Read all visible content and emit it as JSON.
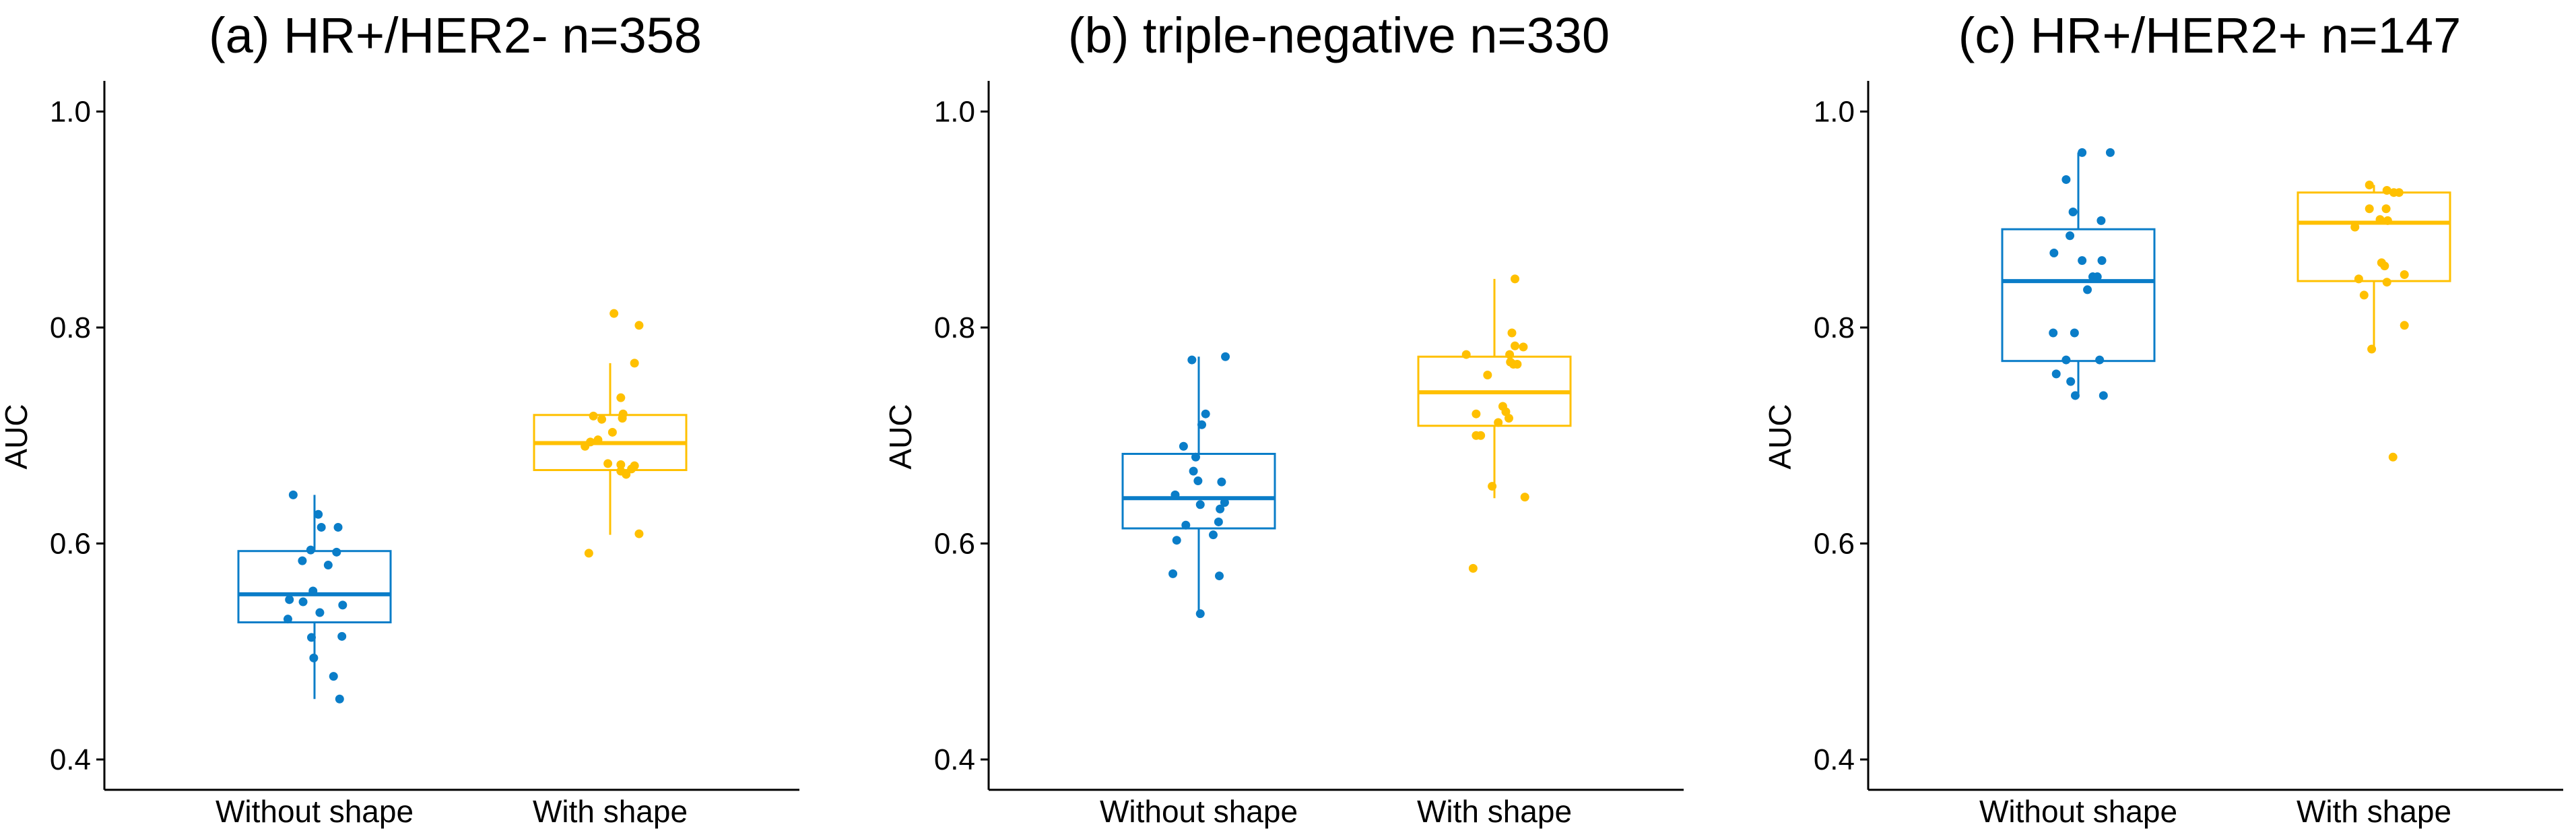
{
  "chart_data": [
    {
      "type": "box",
      "title": "(a) HR+/HER2- n=358",
      "xlabel": "",
      "ylabel": "AUC",
      "ylim": [
        0.4,
        1.0
      ],
      "yticks": [
        0.4,
        0.6,
        0.8,
        1.0
      ],
      "ytick_labels": [
        "0.4",
        "0.6",
        "0.8",
        "1.0"
      ],
      "grid": false,
      "categories": [
        "Without shape",
        "With shape"
      ],
      "series": [
        {
          "name": "Without shape",
          "color": "#0A7DC8",
          "box": {
            "whisker_low": 0.456,
            "q1": 0.527,
            "median": 0.553,
            "q3": 0.593,
            "whisker_high": 0.645
          },
          "points": [
            {
              "jitter": -0.28,
              "value": 0.645
            },
            {
              "jitter": 0.05,
              "value": 0.627
            },
            {
              "jitter": 0.09,
              "value": 0.615
            },
            {
              "jitter": 0.31,
              "value": 0.615
            },
            {
              "jitter": -0.05,
              "value": 0.594
            },
            {
              "jitter": 0.29,
              "value": 0.592
            },
            {
              "jitter": -0.16,
              "value": 0.584
            },
            {
              "jitter": 0.18,
              "value": 0.58
            },
            {
              "jitter": -0.02,
              "value": 0.556
            },
            {
              "jitter": -0.33,
              "value": 0.548
            },
            {
              "jitter": 0.37,
              "value": 0.543
            },
            {
              "jitter": -0.15,
              "value": 0.546
            },
            {
              "jitter": 0.07,
              "value": 0.536
            },
            {
              "jitter": -0.35,
              "value": 0.53
            },
            {
              "jitter": -0.04,
              "value": 0.513
            },
            {
              "jitter": 0.36,
              "value": 0.514
            },
            {
              "jitter": -0.01,
              "value": 0.494
            },
            {
              "jitter": 0.25,
              "value": 0.477
            },
            {
              "jitter": 0.33,
              "value": 0.456
            }
          ]
        },
        {
          "name": "With shape",
          "color": "#FFC000",
          "box": {
            "whisker_low": 0.608,
            "q1": 0.668,
            "median": 0.693,
            "q3": 0.719,
            "whisker_high": 0.767
          },
          "points": [
            {
              "jitter": 0.05,
              "value": 0.813
            },
            {
              "jitter": 0.38,
              "value": 0.802
            },
            {
              "jitter": 0.32,
              "value": 0.767
            },
            {
              "jitter": 0.14,
              "value": 0.735
            },
            {
              "jitter": 0.17,
              "value": 0.72
            },
            {
              "jitter": -0.22,
              "value": 0.718
            },
            {
              "jitter": 0.16,
              "value": 0.716
            },
            {
              "jitter": -0.11,
              "value": 0.715
            },
            {
              "jitter": 0.03,
              "value": 0.703
            },
            {
              "jitter": -0.26,
              "value": 0.694
            },
            {
              "jitter": -0.16,
              "value": 0.696
            },
            {
              "jitter": -0.33,
              "value": 0.69
            },
            {
              "jitter": 0.14,
              "value": 0.673
            },
            {
              "jitter": -0.03,
              "value": 0.674
            },
            {
              "jitter": 0.32,
              "value": 0.672
            },
            {
              "jitter": 0.14,
              "value": 0.667
            },
            {
              "jitter": 0.21,
              "value": 0.664
            },
            {
              "jitter": 0.28,
              "value": 0.669
            },
            {
              "jitter": 0.38,
              "value": 0.609
            },
            {
              "jitter": -0.28,
              "value": 0.591
            }
          ]
        }
      ]
    },
    {
      "type": "box",
      "title": "(b) triple-negative n=330",
      "xlabel": "",
      "ylabel": "AUC",
      "ylim": [
        0.4,
        1.0
      ],
      "yticks": [
        0.4,
        0.6,
        0.8,
        1.0
      ],
      "ytick_labels": [
        "0.4",
        "0.6",
        "0.8",
        "1.0"
      ],
      "grid": false,
      "categories": [
        "Without shape",
        "With shape"
      ],
      "series": [
        {
          "name": "Without shape",
          "color": "#0A7DC8",
          "box": {
            "whisker_low": 0.535,
            "q1": 0.614,
            "median": 0.642,
            "q3": 0.683,
            "whisker_high": 0.773
          },
          "points": [
            {
              "jitter": 0.35,
              "value": 0.773
            },
            {
              "jitter": -0.09,
              "value": 0.77
            },
            {
              "jitter": 0.09,
              "value": 0.72
            },
            {
              "jitter": 0.04,
              "value": 0.71
            },
            {
              "jitter": -0.2,
              "value": 0.69
            },
            {
              "jitter": -0.04,
              "value": 0.68
            },
            {
              "jitter": -0.07,
              "value": 0.667
            },
            {
              "jitter": -0.01,
              "value": 0.658
            },
            {
              "jitter": 0.3,
              "value": 0.657
            },
            {
              "jitter": -0.31,
              "value": 0.645
            },
            {
              "jitter": 0.34,
              "value": 0.638
            },
            {
              "jitter": 0.28,
              "value": 0.632
            },
            {
              "jitter": 0.02,
              "value": 0.636
            },
            {
              "jitter": 0.26,
              "value": 0.62
            },
            {
              "jitter": -0.17,
              "value": 0.617
            },
            {
              "jitter": 0.19,
              "value": 0.608
            },
            {
              "jitter": -0.29,
              "value": 0.603
            },
            {
              "jitter": -0.34,
              "value": 0.572
            },
            {
              "jitter": 0.27,
              "value": 0.57
            },
            {
              "jitter": 0.02,
              "value": 0.535
            }
          ]
        },
        {
          "name": "With shape",
          "color": "#FFC000",
          "box": {
            "whisker_low": 0.642,
            "q1": 0.709,
            "median": 0.74,
            "q3": 0.773,
            "whisker_high": 0.845
          },
          "points": [
            {
              "jitter": 0.27,
              "value": 0.845
            },
            {
              "jitter": 0.23,
              "value": 0.795
            },
            {
              "jitter": 0.27,
              "value": 0.783
            },
            {
              "jitter": 0.38,
              "value": 0.782
            },
            {
              "jitter": -0.37,
              "value": 0.775
            },
            {
              "jitter": 0.2,
              "value": 0.775
            },
            {
              "jitter": 0.21,
              "value": 0.768
            },
            {
              "jitter": 0.25,
              "value": 0.766
            },
            {
              "jitter": 0.3,
              "value": 0.766
            },
            {
              "jitter": -0.09,
              "value": 0.756
            },
            {
              "jitter": 0.11,
              "value": 0.727
            },
            {
              "jitter": 0.15,
              "value": 0.722
            },
            {
              "jitter": -0.24,
              "value": 0.72
            },
            {
              "jitter": 0.19,
              "value": 0.716
            },
            {
              "jitter": 0.05,
              "value": 0.712
            },
            {
              "jitter": -0.18,
              "value": 0.7
            },
            {
              "jitter": -0.24,
              "value": 0.7
            },
            {
              "jitter": -0.03,
              "value": 0.653
            },
            {
              "jitter": 0.4,
              "value": 0.643
            },
            {
              "jitter": -0.28,
              "value": 0.577
            }
          ]
        }
      ]
    },
    {
      "type": "box",
      "title": "(c) HR+/HER2+ n=147",
      "xlabel": "",
      "ylabel": "AUC",
      "ylim": [
        0.4,
        1.0
      ],
      "yticks": [
        0.4,
        0.6,
        0.8,
        1.0
      ],
      "ytick_labels": [
        "0.4",
        "0.6",
        "0.8",
        "1.0"
      ],
      "grid": false,
      "categories": [
        "Without shape",
        "With shape"
      ],
      "series": [
        {
          "name": "Without shape",
          "color": "#0A7DC8",
          "box": {
            "whisker_low": 0.737,
            "q1": 0.769,
            "median": 0.843,
            "q3": 0.891,
            "whisker_high": 0.962
          },
          "points": [
            {
              "jitter": 0.05,
              "value": 0.962
            },
            {
              "jitter": 0.42,
              "value": 0.962
            },
            {
              "jitter": -0.16,
              "value": 0.937
            },
            {
              "jitter": -0.07,
              "value": 0.907
            },
            {
              "jitter": 0.3,
              "value": 0.899
            },
            {
              "jitter": -0.11,
              "value": 0.885
            },
            {
              "jitter": -0.32,
              "value": 0.869
            },
            {
              "jitter": 0.05,
              "value": 0.862
            },
            {
              "jitter": 0.31,
              "value": 0.862
            },
            {
              "jitter": 0.19,
              "value": 0.847
            },
            {
              "jitter": 0.25,
              "value": 0.847
            },
            {
              "jitter": 0.12,
              "value": 0.835
            },
            {
              "jitter": -0.33,
              "value": 0.795
            },
            {
              "jitter": -0.05,
              "value": 0.795
            },
            {
              "jitter": -0.16,
              "value": 0.77
            },
            {
              "jitter": 0.28,
              "value": 0.77
            },
            {
              "jitter": -0.29,
              "value": 0.757
            },
            {
              "jitter": -0.1,
              "value": 0.75
            },
            {
              "jitter": -0.04,
              "value": 0.737
            },
            {
              "jitter": 0.33,
              "value": 0.737
            }
          ]
        },
        {
          "name": "With shape",
          "color": "#FFC000",
          "box": {
            "whisker_low": 0.78,
            "q1": 0.843,
            "median": 0.897,
            "q3": 0.925,
            "whisker_high": 0.932
          },
          "points": [
            {
              "jitter": -0.06,
              "value": 0.932
            },
            {
              "jitter": 0.17,
              "value": 0.927
            },
            {
              "jitter": 0.26,
              "value": 0.925
            },
            {
              "jitter": 0.33,
              "value": 0.925
            },
            {
              "jitter": -0.06,
              "value": 0.91
            },
            {
              "jitter": 0.16,
              "value": 0.91
            },
            {
              "jitter": 0.08,
              "value": 0.9
            },
            {
              "jitter": 0.18,
              "value": 0.899
            },
            {
              "jitter": -0.25,
              "value": 0.893
            },
            {
              "jitter": 0.1,
              "value": 0.86
            },
            {
              "jitter": 0.14,
              "value": 0.857
            },
            {
              "jitter": 0.4,
              "value": 0.849
            },
            {
              "jitter": -0.2,
              "value": 0.845
            },
            {
              "jitter": 0.17,
              "value": 0.842
            },
            {
              "jitter": -0.13,
              "value": 0.83
            },
            {
              "jitter": 0.4,
              "value": 0.802
            },
            {
              "jitter": -0.03,
              "value": 0.78
            },
            {
              "jitter": 0.25,
              "value": 0.68
            }
          ]
        }
      ]
    }
  ]
}
